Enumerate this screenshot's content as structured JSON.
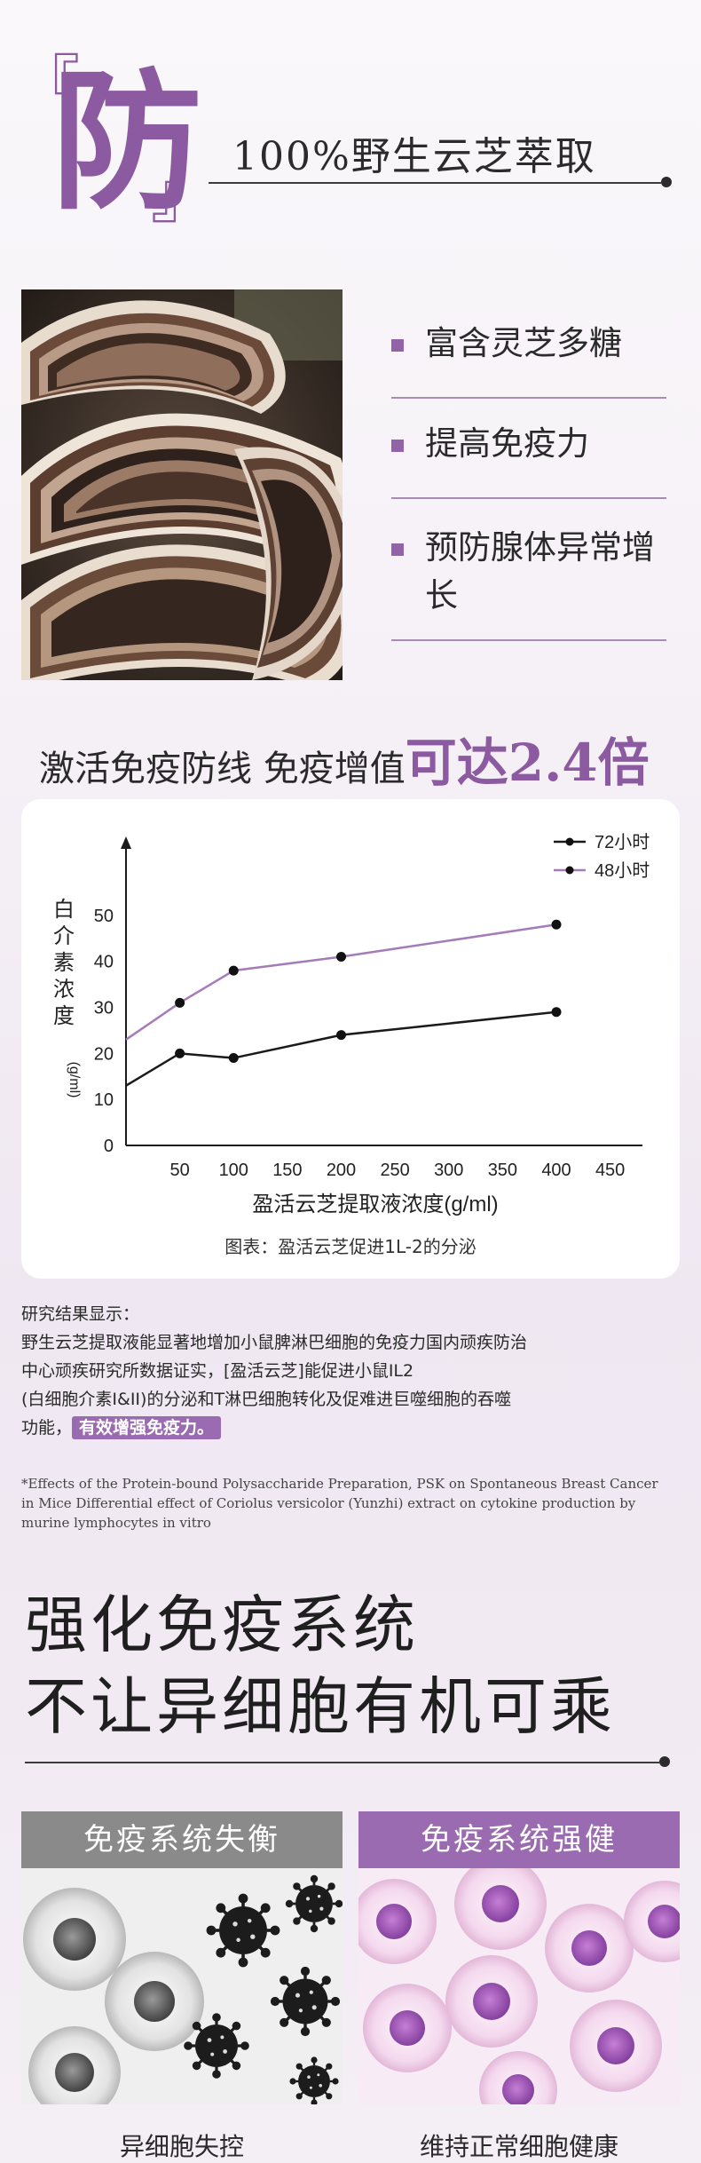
{
  "header": {
    "bracket_open": "『",
    "big_char": "防",
    "bracket_close": "』",
    "title": "100%野生云芝萃取"
  },
  "features": [
    {
      "text": "富含灵芝多糖"
    },
    {
      "text": "提高免疫力"
    },
    {
      "text": "预防腺体异常增长"
    }
  ],
  "headline": {
    "prefix": "激活免疫防线 免疫增值",
    "emphasis": "可达2.4倍"
  },
  "chart_data": {
    "type": "line",
    "x": [
      0,
      50,
      100,
      200,
      400
    ],
    "xticks": [
      50,
      100,
      150,
      200,
      250,
      300,
      350,
      400,
      450
    ],
    "yticks": [
      0,
      10,
      20,
      30,
      40,
      50
    ],
    "xlim": [
      0,
      480
    ],
    "ylim": [
      0,
      55
    ],
    "xlabel": "盈活云芝提取液浓度(g/ml)",
    "ylabel": "白介素浓度",
    "ylabel_unit": "(g/ml)",
    "legend_position": "top-right",
    "series": [
      {
        "name": "72小时",
        "color": "#1a1a1a",
        "values": [
          13,
          20,
          19,
          24,
          29
        ]
      },
      {
        "name": "48小时",
        "color": "#a57bb8",
        "values": [
          23,
          31,
          38,
          41,
          48
        ]
      }
    ],
    "caption": "图表：盈活云芝促进1L-2的分泌"
  },
  "research": {
    "heading": "研究结果显示：",
    "line1": "野生云芝提取液能显著地增加小鼠脾淋巴细胞的免疫力国内顽疾防治",
    "line2": "中心顽疾研究所数据证实，[盈活云芝]能促进小鼠IL2",
    "line3": "(白细胞介素I&II)的分泌和T淋巴细胞转化及促难进巨噬细胞的吞噬",
    "line4_prefix": "功能，",
    "highlight": "有效增强免疫力。",
    "footnote1": "*Effects of the Protein-bound Polysaccharide Preparation, PSK on Spontaneous Breast Cancer",
    "footnote2": "in Mice Differential effect of Coriolus versicolor (Yunzhi) extract on cytokine production by",
    "footnote3": "murine lymphocytes in vitro"
  },
  "big_heading": {
    "line1": "强化免疫系统",
    "line2": "不让异细胞有机可乘"
  },
  "panels": {
    "left": {
      "title": "免疫系统失衡",
      "caption": "异细胞失控",
      "head_color": "#8a8a8a"
    },
    "right": {
      "title": "免疫系统强健",
      "caption": "维持正常细胞健康",
      "head_color": "#9a6bb0"
    }
  },
  "colors": {
    "accent": "#8c5aa0",
    "accent_light": "#a57bb8"
  }
}
